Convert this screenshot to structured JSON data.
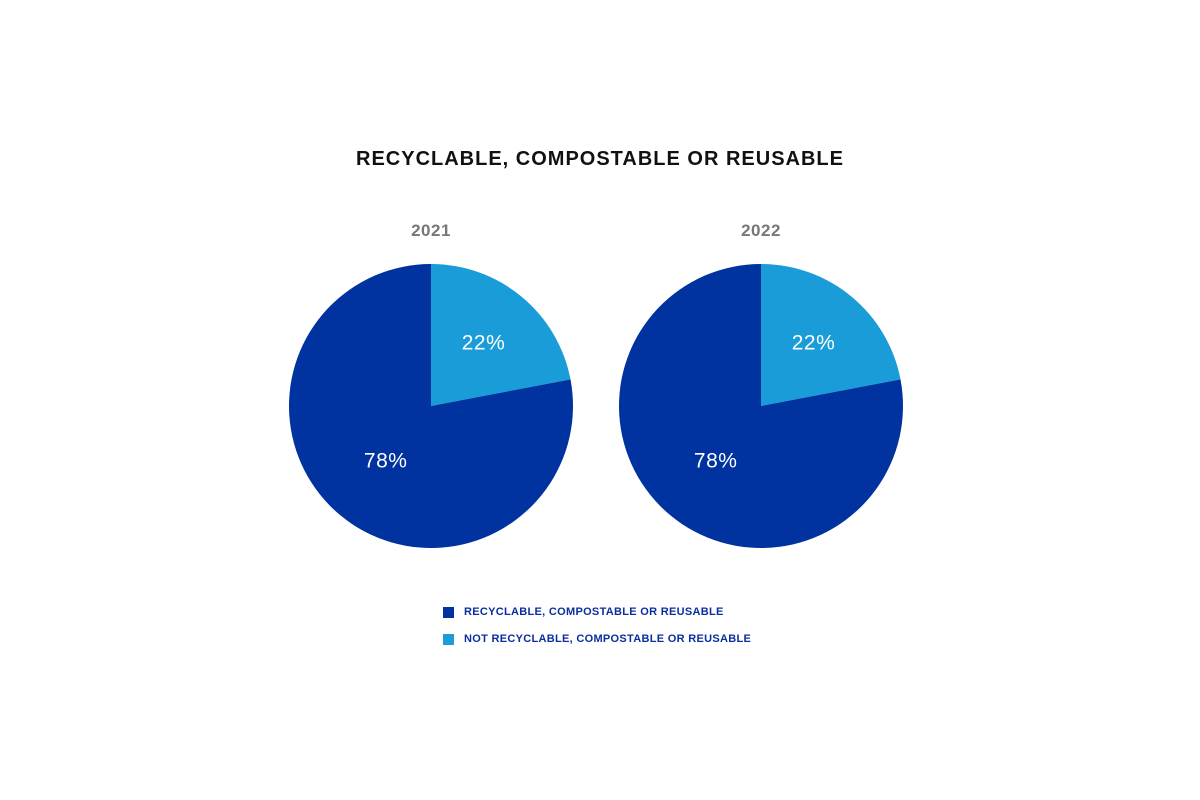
{
  "colors": {
    "recyclable": "#0033a0",
    "not_recyclable": "#1a9cd8",
    "legend_text": "#0a2f9e"
  },
  "chart_data": {
    "type": "pie",
    "title": "RECYCLABLE, COMPOSTABLE OR REUSABLE",
    "legend_position": "bottom-center",
    "pies": [
      {
        "label": "2021",
        "slices": [
          {
            "label": "RECYCLABLE, COMPOSTABLE OR REUSABLE",
            "value": 78,
            "text": "78%",
            "color": "#0033a0"
          },
          {
            "label": "NOT RECYCLABLE, COMPOSTABLE OR REUSABLE",
            "value": 22,
            "text": "22%",
            "color": "#1a9cd8"
          }
        ]
      },
      {
        "label": "2022",
        "slices": [
          {
            "label": "RECYCLABLE, COMPOSTABLE OR REUSABLE",
            "value": 78,
            "text": "78%",
            "color": "#0033a0"
          },
          {
            "label": "NOT RECYCLABLE, COMPOSTABLE OR REUSABLE",
            "value": 22,
            "text": "22%",
            "color": "#1a9cd8"
          }
        ]
      }
    ],
    "legend": [
      {
        "label": "RECYCLABLE, COMPOSTABLE OR REUSABLE",
        "color": "#0033a0"
      },
      {
        "label": "NOT RECYCLABLE, COMPOSTABLE OR REUSABLE",
        "color": "#1a9cd8"
      }
    ]
  }
}
